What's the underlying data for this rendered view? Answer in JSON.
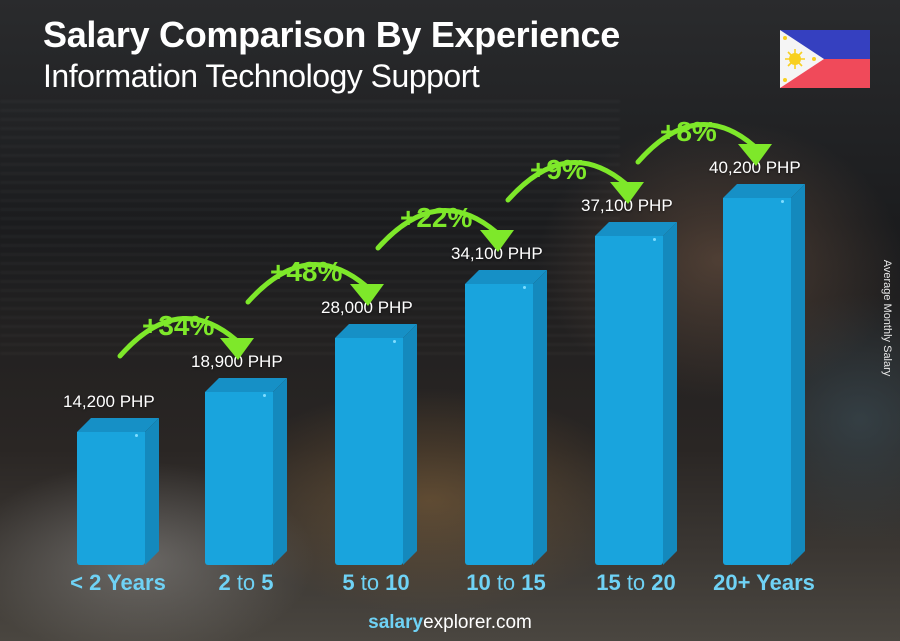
{
  "header": {
    "title": "Salary Comparison By Experience",
    "subtitle": "Information Technology Support"
  },
  "flag": {
    "country": "Philippines",
    "icon": "philippines-flag-icon",
    "colors": {
      "blue": "#3540c0",
      "red": "#f04a5a",
      "white": "#f5f5f5",
      "sun": "#f8d020"
    }
  },
  "side_label": "Average Monthly Salary",
  "footer": {
    "brand_bold": "salary",
    "brand_rest": "explorer",
    "tld": ".com"
  },
  "colors": {
    "bar": "#19a4dd",
    "bar_top": "#1690c6",
    "bar_side": "#1489bd",
    "pct": "#7ee82a",
    "category": "#6fd2f5"
  },
  "categories": [
    {
      "label": "< 2 Years",
      "parts": [
        {
          "t": "< 2 Years",
          "b": true
        }
      ]
    },
    {
      "label": "2 to 5",
      "parts": [
        {
          "t": "2",
          "b": true
        },
        {
          "t": " to ",
          "b": false
        },
        {
          "t": "5",
          "b": true
        }
      ]
    },
    {
      "label": "5 to 10",
      "parts": [
        {
          "t": "5",
          "b": true
        },
        {
          "t": " to ",
          "b": false
        },
        {
          "t": "10",
          "b": true
        }
      ]
    },
    {
      "label": "10 to 15",
      "parts": [
        {
          "t": "10",
          "b": true
        },
        {
          "t": " to ",
          "b": false
        },
        {
          "t": "15",
          "b": true
        }
      ]
    },
    {
      "label": "15 to 20",
      "parts": [
        {
          "t": "15",
          "b": true
        },
        {
          "t": " to ",
          "b": false
        },
        {
          "t": "20",
          "b": true
        }
      ]
    },
    {
      "label": "20+ Years",
      "parts": [
        {
          "t": "20+ Years",
          "b": true
        }
      ]
    }
  ],
  "value_labels": [
    "14,200 PHP",
    "18,900 PHP",
    "28,000 PHP",
    "34,100 PHP",
    "37,100 PHP",
    "40,200 PHP"
  ],
  "pct_labels": [
    "+34%",
    "+48%",
    "+22%",
    "+9%",
    "+8%"
  ],
  "chart_data": {
    "type": "bar",
    "title": "Salary Comparison By Experience",
    "subtitle": "Information Technology Support",
    "categories": [
      "< 2 Years",
      "2 to 5",
      "5 to 10",
      "10 to 15",
      "15 to 20",
      "20+ Years"
    ],
    "values": [
      14200,
      18900,
      28000,
      34100,
      37100,
      40200
    ],
    "unit": "PHP",
    "ylabel": "Average Monthly Salary",
    "xlabel": "",
    "growth_annotations": [
      {
        "from": "< 2 Years",
        "to": "2 to 5",
        "label": "+34%"
      },
      {
        "from": "2 to 5",
        "to": "5 to 10",
        "label": "+48%"
      },
      {
        "from": "5 to 10",
        "to": "10 to 15",
        "label": "+22%"
      },
      {
        "from": "10 to 15",
        "to": "15 to 20",
        "label": "+9%"
      },
      {
        "from": "15 to 20",
        "to": "20+ Years",
        "label": "+8%"
      }
    ],
    "grid": false,
    "legend": "none",
    "style": "3d-bars"
  }
}
